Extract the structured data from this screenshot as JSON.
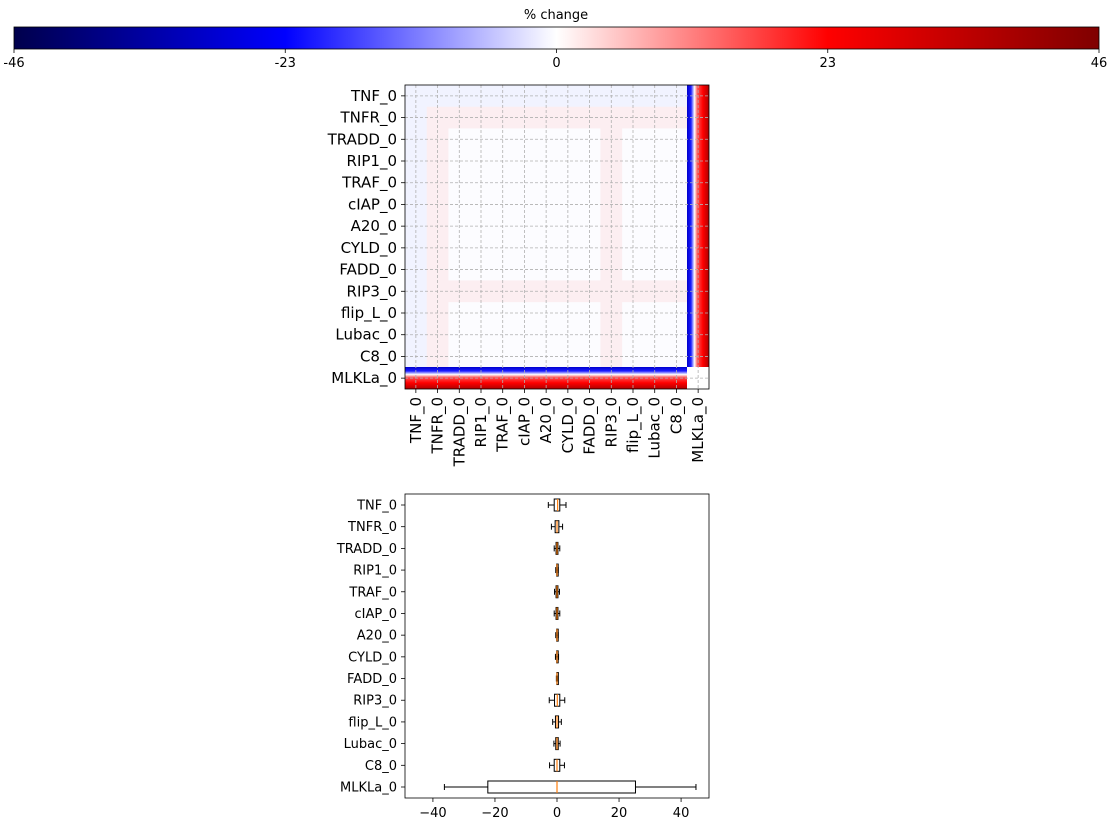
{
  "chart_data": [
    {
      "type": "colorbar",
      "title": "% change",
      "ticks": [
        "-46",
        "-23",
        "0",
        "23",
        "46"
      ],
      "range": [
        -46,
        46
      ],
      "colormap": "seismic",
      "colors": [
        "#00004c",
        "#0000ff",
        "#ffffff",
        "#ff0000",
        "#7f0000"
      ]
    },
    {
      "type": "heatmap",
      "row_labels": [
        "TNF_0",
        "TNFR_0",
        "TRADD_0",
        "RIP1_0",
        "TRAF_0",
        "cIAP_0",
        "A20_0",
        "CYLD_0",
        "FADD_0",
        "RIP3_0",
        "flip_L_0",
        "Lubac_0",
        "C8_0",
        "MLKLa_0"
      ],
      "col_labels": [
        "TNF_0",
        "TNFR_0",
        "TRADD_0",
        "RIP1_0",
        "TRAF_0",
        "cIAP_0",
        "A20_0",
        "CYLD_0",
        "FADD_0",
        "RIP3_0",
        "flip_L_0",
        "Lubac_0",
        "C8_0",
        "MLKLa_0"
      ],
      "description_values": "Off-diagonal cells near 0 (very faint); last row and last column show strong gradient from about -46 (blue) to +46 (red)",
      "grid": true
    },
    {
      "type": "boxplot",
      "orientation": "horizontal",
      "categories": [
        "TNF_0",
        "TNFR_0",
        "TRADD_0",
        "RIP1_0",
        "TRAF_0",
        "cIAP_0",
        "A20_0",
        "CYLD_0",
        "FADD_0",
        "RIP3_0",
        "flip_L_0",
        "Lubac_0",
        "C8_0",
        "MLKLa_0"
      ],
      "boxes": [
        {
          "whislo": -2.8,
          "q1": -0.9,
          "med": 0.2,
          "q3": 0.9,
          "whishi": 2.9
        },
        {
          "whislo": -1.8,
          "q1": -0.6,
          "med": 0.0,
          "q3": 0.6,
          "whishi": 1.8
        },
        {
          "whislo": -0.9,
          "q1": -0.3,
          "med": 0.0,
          "q3": 0.3,
          "whishi": 0.9
        },
        {
          "whislo": -0.4,
          "q1": -0.1,
          "med": 0.0,
          "q3": 0.1,
          "whishi": 0.4
        },
        {
          "whislo": -0.8,
          "q1": -0.3,
          "med": 0.0,
          "q3": 0.3,
          "whishi": 0.8
        },
        {
          "whislo": -0.9,
          "q1": -0.3,
          "med": 0.0,
          "q3": 0.3,
          "whishi": 0.9
        },
        {
          "whislo": -0.4,
          "q1": -0.1,
          "med": 0.0,
          "q3": 0.1,
          "whishi": 0.4
        },
        {
          "whislo": -0.5,
          "q1": -0.1,
          "med": 0.0,
          "q3": 0.1,
          "whishi": 0.5
        },
        {
          "whislo": -0.2,
          "q1": -0.05,
          "med": 0.0,
          "q3": 0.05,
          "whishi": 0.2
        },
        {
          "whislo": -2.5,
          "q1": -0.8,
          "med": 0.1,
          "q3": 0.9,
          "whishi": 2.5
        },
        {
          "whislo": -1.4,
          "q1": -0.5,
          "med": 0.0,
          "q3": 0.5,
          "whishi": 1.4
        },
        {
          "whislo": -1.0,
          "q1": -0.4,
          "med": 0.0,
          "q3": 0.4,
          "whishi": 1.0
        },
        {
          "whislo": -2.4,
          "q1": -0.9,
          "med": 0.0,
          "q3": 0.9,
          "whishi": 2.4
        },
        {
          "whislo": -36.3,
          "q1": -22.3,
          "med": 0.0,
          "q3": 25.3,
          "whishi": 44.8
        }
      ],
      "xlim": [
        -49,
        49
      ],
      "xticks": [
        -40,
        -20,
        0,
        20,
        40
      ],
      "xtick_labels": [
        "−40",
        "−20",
        "0",
        "20",
        "40"
      ],
      "box_color": "#000000",
      "median_color": "#ff7f0e"
    }
  ]
}
